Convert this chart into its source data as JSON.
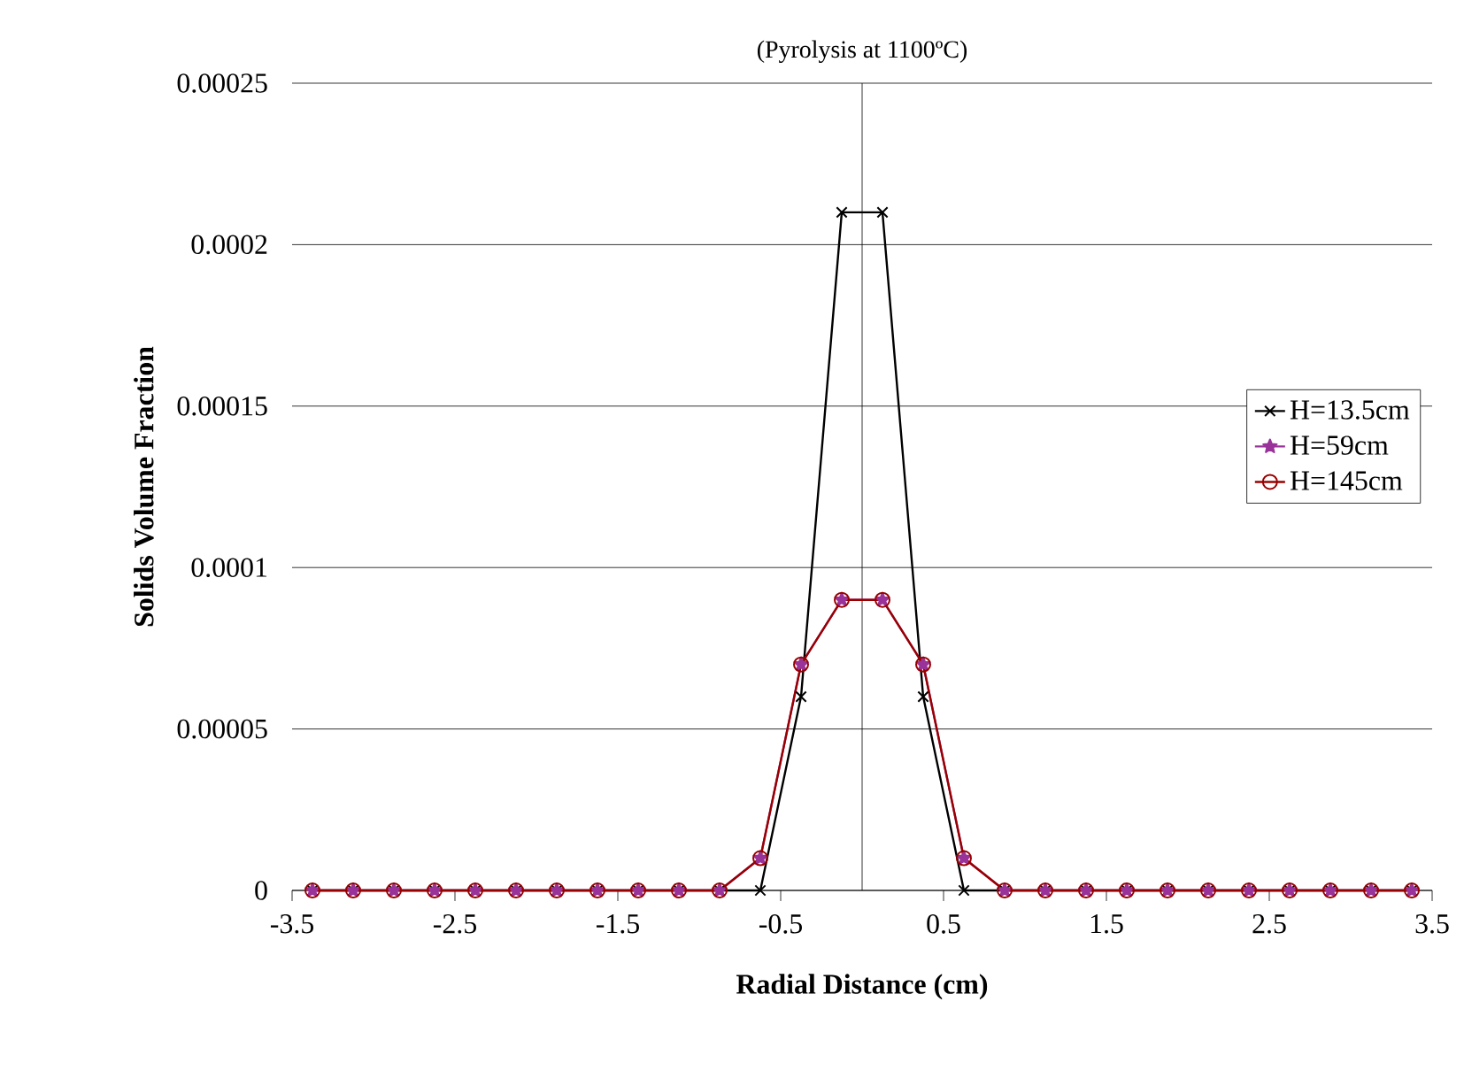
{
  "chart_data": {
    "type": "line",
    "title": "(Pyrolysis at 1100ºC)",
    "xlabel": "Radial Distance (cm)",
    "ylabel": "Solids Volume Fraction",
    "x": [
      -3.375,
      -3.125,
      -2.875,
      -2.625,
      -2.375,
      -2.125,
      -1.875,
      -1.625,
      -1.375,
      -1.125,
      -0.875,
      -0.625,
      -0.375,
      -0.125,
      0.125,
      0.375,
      0.625,
      0.875,
      1.125,
      1.375,
      1.625,
      1.875,
      2.125,
      2.375,
      2.625,
      2.875,
      3.125,
      3.375
    ],
    "series": [
      {
        "name": "H=13.5cm",
        "color": "#000000",
        "marker": "cross",
        "values": [
          0,
          0,
          0,
          0,
          0,
          0,
          0,
          0,
          0,
          0,
          0,
          0,
          6e-05,
          0.00021,
          0.00021,
          6e-05,
          0,
          0,
          0,
          0,
          0,
          0,
          0,
          0,
          0,
          0,
          0,
          0
        ]
      },
      {
        "name": "H=59cm",
        "color": "#993399",
        "marker": "star",
        "values": [
          0,
          0,
          0,
          0,
          0,
          0,
          0,
          0,
          0,
          0,
          0,
          1e-05,
          7e-05,
          9e-05,
          9e-05,
          7e-05,
          1e-05,
          0,
          0,
          0,
          0,
          0,
          0,
          0,
          0,
          0,
          0,
          0
        ]
      },
      {
        "name": "H=145cm",
        "color": "#990000",
        "marker": "circle",
        "values": [
          0,
          0,
          0,
          0,
          0,
          0,
          0,
          0,
          0,
          0,
          0,
          1e-05,
          7e-05,
          9e-05,
          9e-05,
          7e-05,
          1e-05,
          0,
          0,
          0,
          0,
          0,
          0,
          0,
          0,
          0,
          0,
          0
        ]
      }
    ],
    "xlim": [
      -3.5,
      3.5
    ],
    "xticks": [
      -3.5,
      -2.5,
      -1.5,
      -0.5,
      0.5,
      1.5,
      2.5,
      3.5
    ],
    "ylim": [
      0,
      0.00025
    ],
    "yticks": [
      {
        "value": 0,
        "label": "0"
      },
      {
        "value": 5e-05,
        "label": "0.00005"
      },
      {
        "value": 0.0001,
        "label": "0.0001"
      },
      {
        "value": 0.00015,
        "label": "0.00015"
      },
      {
        "value": 0.0002,
        "label": "0.0002"
      },
      {
        "value": 0.00025,
        "label": "0.00025"
      }
    ],
    "grid": "y",
    "legend": "right",
    "line_style": "solid"
  }
}
